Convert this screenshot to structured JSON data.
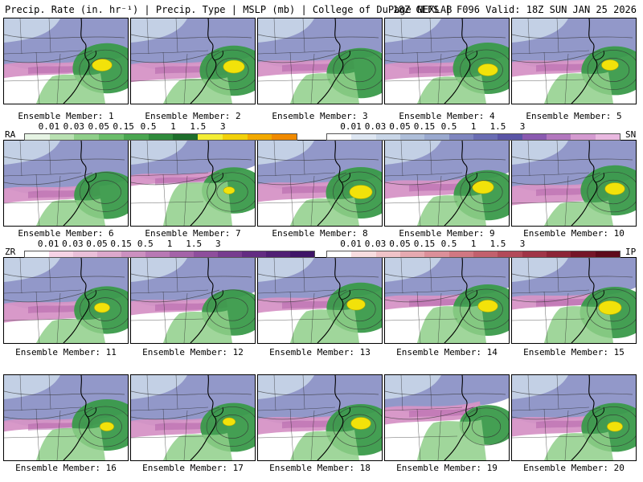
{
  "header": {
    "left": "Precip. Rate (in. hr⁻¹) | Precip. Type | MSLP (mb) | College of DuPage NEXLAB",
    "right": "18Z GEFS | F096 Valid: 18Z SUN JAN 25 2026"
  },
  "colors": {
    "snow": "#7f86bf",
    "snow_light": "#c9d6e8",
    "rain": "#3a9a4a",
    "rain_light": "#8fcf8a",
    "heavy": "#f2e20a",
    "mix": "#d693c6",
    "mix_dark": "#b060a8"
  },
  "members": [
    {
      "label": "Ensemble Member: 1",
      "snow": 0.6,
      "mix": 0.35,
      "rain": 0.7,
      "yellow": 0.35
    },
    {
      "label": "Ensemble Member: 2",
      "snow": 0.6,
      "mix": 0.55,
      "rain": 0.7,
      "yellow": 0.4
    },
    {
      "label": "Ensemble Member: 3",
      "snow": 0.55,
      "mix": 0.4,
      "rain": 0.7,
      "yellow": 0.0
    },
    {
      "label": "Ensemble Member: 4",
      "snow": 0.6,
      "mix": 0.45,
      "rain": 0.75,
      "yellow": 0.35
    },
    {
      "label": "Ensemble Member: 5",
      "snow": 0.55,
      "mix": 0.4,
      "rain": 0.65,
      "yellow": 0.25
    },
    {
      "label": "Ensemble Member: 6",
      "snow": 0.65,
      "mix": 0.4,
      "rain": 0.6,
      "yellow": 0.0
    },
    {
      "label": "Ensemble Member: 7",
      "snow": 0.35,
      "mix": 0.2,
      "rain": 0.55,
      "yellow": 0.05
    },
    {
      "label": "Ensemble Member: 8",
      "snow": 0.55,
      "mix": 0.55,
      "rain": 0.75,
      "yellow": 0.45
    },
    {
      "label": "Ensemble Member: 9",
      "snow": 0.5,
      "mix": 0.5,
      "rain": 0.7,
      "yellow": 0.4
    },
    {
      "label": "Ensemble Member: 10",
      "snow": 0.6,
      "mix": 0.6,
      "rain": 0.7,
      "yellow": 0.35
    },
    {
      "label": "Ensemble Member: 11",
      "snow": 0.6,
      "mix": 0.6,
      "rain": 0.6,
      "yellow": 0.2
    },
    {
      "label": "Ensemble Member: 12",
      "snow": 0.55,
      "mix": 0.35,
      "rain": 0.55,
      "yellow": 0.0
    },
    {
      "label": "Ensemble Member: 13",
      "snow": 0.5,
      "mix": 0.35,
      "rain": 0.7,
      "yellow": 0.3
    },
    {
      "label": "Ensemble Member: 14",
      "snow": 0.45,
      "mix": 0.3,
      "rain": 0.75,
      "yellow": 0.35
    },
    {
      "label": "Ensemble Member: 15",
      "snow": 0.45,
      "mix": 0.3,
      "rain": 0.75,
      "yellow": 0.45
    },
    {
      "label": "Ensemble Member: 16",
      "snow": 0.6,
      "mix": 0.2,
      "rain": 0.75,
      "yellow": 0.15
    },
    {
      "label": "Ensemble Member: 17",
      "snow": 0.6,
      "mix": 0.5,
      "rain": 0.65,
      "yellow": 0.1
    },
    {
      "label": "Ensemble Member: 18",
      "snow": 0.55,
      "mix": 0.45,
      "rain": 0.75,
      "yellow": 0.35
    },
    {
      "label": "Ensemble Member: 19",
      "snow": 0.3,
      "mix": 0.5,
      "rain": 0.3,
      "yellow": 0.0
    },
    {
      "label": "Ensemble Member: 20",
      "snow": 0.55,
      "mix": 0.55,
      "rain": 0.65,
      "yellow": 0.2
    }
  ],
  "legends": {
    "rain": {
      "code": "RA",
      "ticks": [
        "0.01",
        "0.03",
        "0.05",
        "0.15",
        "0.5",
        "1",
        "1.5",
        "3"
      ],
      "colors": [
        "#e6f4e4",
        "#b9e1b2",
        "#8fcf8a",
        "#6bbd6b",
        "#4aa651",
        "#2f8b3c",
        "#1e6e2c",
        "#f4ee36",
        "#f2d10a",
        "#f2a900",
        "#f08a00"
      ]
    },
    "snow": {
      "code": "SN",
      "ticks": [
        "0.01",
        "0.03",
        "0.05",
        "0.15",
        "0.5",
        "1",
        "1.5",
        "3"
      ],
      "colors": [
        "#ffffff",
        "#dde6f2",
        "#c9d6e8",
        "#aebed9",
        "#9aa9cf",
        "#7f86bf",
        "#6a6db3",
        "#5a55a6",
        "#8a5ab0",
        "#b277be",
        "#d49ad0",
        "#e9b8e0"
      ]
    },
    "zr": {
      "code": "ZR",
      "ticks": [
        "0.01",
        "0.03",
        "0.05",
        "0.15",
        "0.5",
        "1",
        "1.5",
        "3"
      ],
      "colors": [
        "#ffffff",
        "#f6d3e6",
        "#eabfd9",
        "#dca8cc",
        "#cc90c0",
        "#b878b4",
        "#a463a8",
        "#8e4e9c",
        "#773c8f",
        "#632c82",
        "#501f74",
        "#3e1467"
      ]
    },
    "ip": {
      "code": "IP",
      "ticks": [
        "0.01",
        "0.03",
        "0.05",
        "0.15",
        "0.5",
        "1",
        "1.5",
        "3"
      ],
      "colors": [
        "#ffffff",
        "#f8dde0",
        "#f0c3c8",
        "#e6a9b0",
        "#dc8f99",
        "#d07782",
        "#c2606d",
        "#b24a59",
        "#a03547",
        "#8c2436",
        "#751527",
        "#5e0a1b"
      ]
    }
  }
}
